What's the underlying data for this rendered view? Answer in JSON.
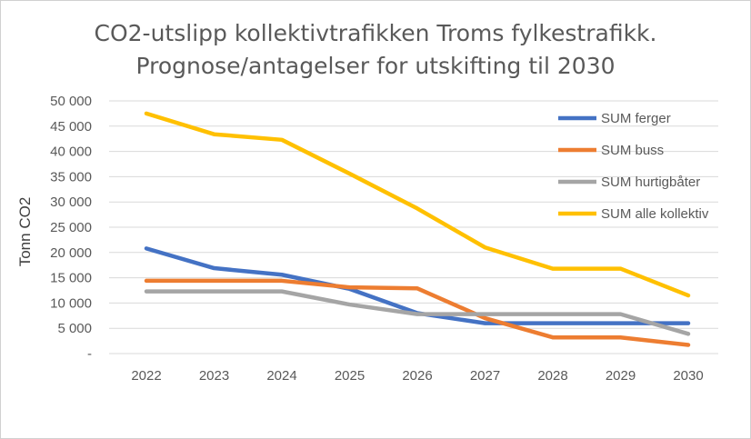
{
  "chart_data": {
    "type": "line",
    "title_line1": "CO2-utslipp kollektivtrafikken Troms fylkestrafikk.",
    "title_line2": "Prognose/antagelser for utskifting til 2030",
    "xlabel": "",
    "ylabel": "Tonn CO2",
    "categories": [
      "2022",
      "2023",
      "2024",
      "2025",
      "2026",
      "2027",
      "2028",
      "2029",
      "2030"
    ],
    "ylim": [
      0,
      50000
    ],
    "yticks": [
      0,
      5000,
      10000,
      15000,
      20000,
      25000,
      30000,
      35000,
      40000,
      45000,
      50000
    ],
    "ytick_labels": [
      "-",
      "5 000",
      "10 000",
      "15 000",
      "20 000",
      "25 000",
      "30 000",
      "35 000",
      "40 000",
      "45 000",
      "50 000"
    ],
    "grid": true,
    "legend_position": "right",
    "series": [
      {
        "name": "SUM ferger",
        "color": "#4472C4",
        "values": [
          20800,
          16900,
          15600,
          12800,
          8000,
          6000,
          6000,
          6000,
          6000
        ]
      },
      {
        "name": "SUM buss",
        "color": "#ED7D31",
        "values": [
          14400,
          14400,
          14400,
          13100,
          12900,
          7000,
          3200,
          3200,
          1700
        ]
      },
      {
        "name": "SUM hurtigbåter",
        "color": "#A5A5A5",
        "values": [
          12300,
          12300,
          12300,
          9700,
          7800,
          7800,
          7800,
          7800,
          3900
        ]
      },
      {
        "name": "SUM alle kollektiv",
        "color": "#FFC000",
        "values": [
          47500,
          43400,
          42300,
          35600,
          28700,
          21000,
          16800,
          16800,
          11500
        ]
      }
    ]
  }
}
